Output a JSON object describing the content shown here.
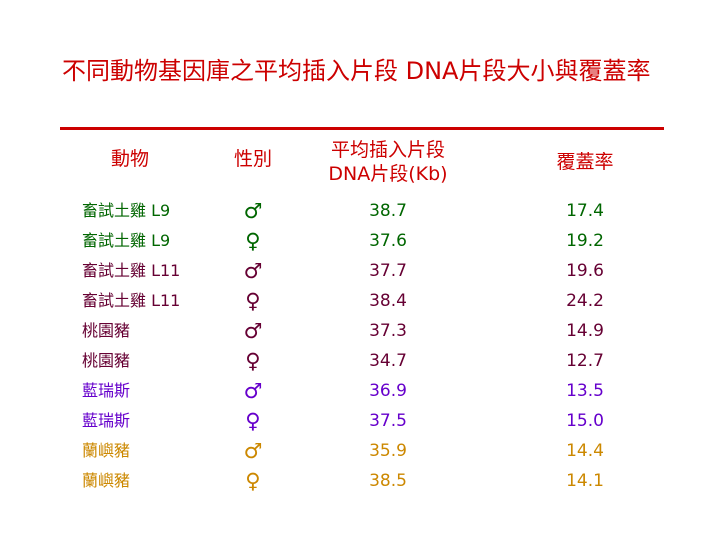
{
  "title": "不同動物基因庫之平均插入片段 DNA片段大小與覆蓋率",
  "headers": {
    "animal": "動物",
    "sex": "性別",
    "insert_line1": "平均插入片段",
    "insert_line2": "DNA片段(Kb)",
    "coverage": "覆蓋率"
  },
  "colors": {
    "title": "#cc0000",
    "group1": "#006600",
    "group2": "#660033",
    "group3": "#6600cc",
    "group4": "#cc8800"
  },
  "rows": [
    {
      "animal": "畜試土雞 L9",
      "sex": "♂",
      "insert": "38.7",
      "coverage": "17.4",
      "color": "#006600"
    },
    {
      "animal": "畜試土雞 L9",
      "sex": "♀",
      "insert": "37.6",
      "coverage": "19.2",
      "color": "#006600"
    },
    {
      "animal": "畜試土雞 L11",
      "sex": "♂",
      "insert": "37.7",
      "coverage": "19.6",
      "color": "#660033"
    },
    {
      "animal": "畜試土雞 L11",
      "sex": "♀",
      "insert": "38.4",
      "coverage": "24.2",
      "color": "#660033"
    },
    {
      "animal": "桃園豬",
      "sex": "♂",
      "insert": "37.3",
      "coverage": "14.9",
      "color": "#660033"
    },
    {
      "animal": "桃園豬",
      "sex": "♀",
      "insert": "34.7",
      "coverage": "12.7",
      "color": "#660033"
    },
    {
      "animal": "藍瑞斯",
      "sex": "♂",
      "insert": "36.9",
      "coverage": "13.5",
      "color": "#6600cc"
    },
    {
      "animal": "藍瑞斯",
      "sex": "♀",
      "insert": "37.5",
      "coverage": "15.0",
      "color": "#6600cc"
    },
    {
      "animal": "蘭嶼豬",
      "sex": "♂",
      "insert": "35.9",
      "coverage": "14.4",
      "color": "#cc8800"
    },
    {
      "animal": "蘭嶼豬",
      "sex": "♀",
      "insert": "38.5",
      "coverage": "14.1",
      "color": "#cc8800"
    }
  ]
}
